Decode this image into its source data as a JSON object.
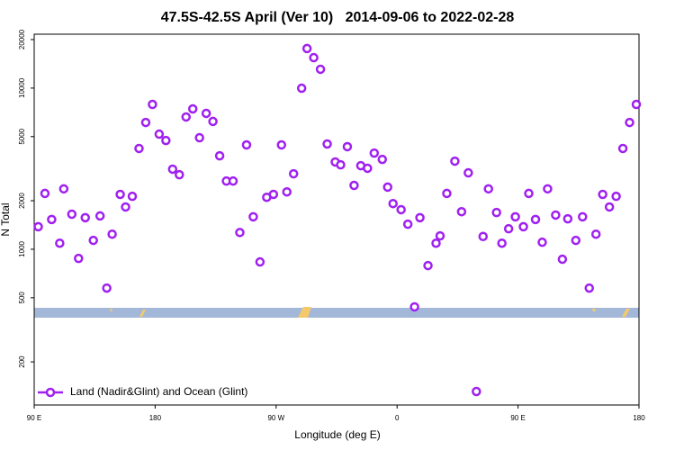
{
  "chart_data": {
    "type": "scatter",
    "title": "47.5S-42.5S April (Ver 10)   2014-09-06 to 2022-02-28",
    "xlabel": "Longitude (deg E)",
    "ylabel": "N Total",
    "xlim": [
      90,
      540
    ],
    "xticks": [
      {
        "value": 90,
        "label": "90 E"
      },
      {
        "value": 180,
        "label": "180"
      },
      {
        "value": 270,
        "label": "90 W"
      },
      {
        "value": 360,
        "label": "0"
      },
      {
        "value": 450,
        "label": "90 E"
      },
      {
        "value": 540,
        "label": "180"
      }
    ],
    "ylim": [
      108,
      21600
    ],
    "yscale": "log",
    "yticks": [
      200,
      500,
      1000,
      2000,
      5000,
      10000,
      20000
    ],
    "legend": "lower left",
    "series": [
      {
        "name": "Land (Nadir&Glint) and Ocean (Glint)",
        "color": "#a020f0",
        "x": [
          93,
          98,
          103,
          109,
          112,
          118,
          123,
          128,
          134,
          139,
          144,
          148,
          154,
          158,
          163,
          168,
          173,
          178,
          183,
          188,
          193,
          198,
          203,
          208,
          213,
          218,
          223,
          228,
          233,
          238,
          243,
          248,
          253,
          258,
          263,
          268,
          274,
          278,
          283,
          289,
          293,
          298,
          303,
          308,
          314,
          318,
          323,
          328,
          333,
          338,
          343,
          349,
          353,
          357,
          363,
          368,
          373,
          377,
          383,
          389,
          392,
          397,
          403,
          408,
          413,
          419,
          424,
          428,
          434,
          438,
          443,
          448,
          454,
          458,
          463,
          468,
          472,
          478,
          483,
          487,
          493,
          498,
          503,
          508,
          513,
          518,
          523,
          528,
          533,
          538
        ],
        "values": [
          1380,
          2220,
          1530,
          1090,
          2370,
          1650,
          877,
          1570,
          1135,
          1610,
          574,
          1240,
          2190,
          1830,
          2130,
          4220,
          6120,
          7920,
          5180,
          4730,
          3140,
          2900,
          6620,
          7430,
          4920,
          6970,
          6210,
          3800,
          2650,
          2650,
          1270,
          4440,
          1590,
          834,
          2100,
          2190,
          4440,
          2270,
          2940,
          9980,
          17600,
          15450,
          13090,
          4500,
          3480,
          3340,
          4330,
          2490,
          3300,
          3180,
          3950,
          3610,
          2430,
          1920,
          1760,
          1430,
          439,
          1570,
          792,
          1090,
          1210,
          2220,
          3520,
          1710,
          2980,
          131,
          1200,
          2370,
          1690,
          1090,
          1340,
          1590,
          1380,
          2220,
          1530,
          1105,
          2370,
          1630,
          867,
          1545,
          1135,
          1590,
          574,
          1240,
          2190,
          1830,
          2130,
          4220,
          6120,
          7920
        ]
      }
    ]
  }
}
